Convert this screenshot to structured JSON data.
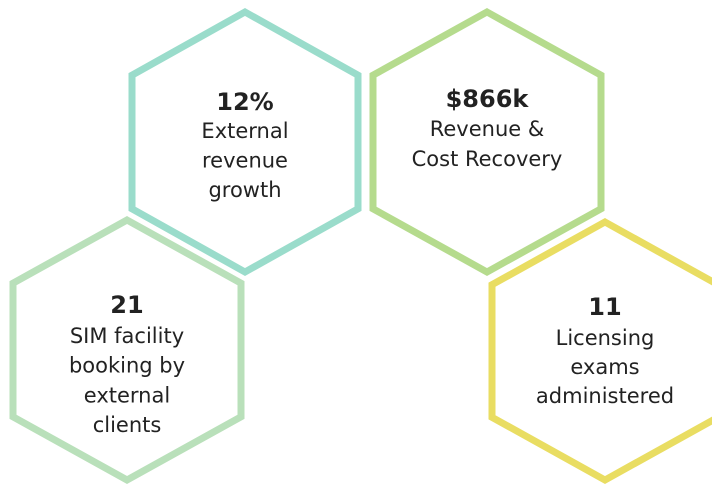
{
  "hexagons": [
    {
      "value": "12%",
      "lines": [
        "External",
        "revenue",
        "growth"
      ],
      "color": "#9adccb"
    },
    {
      "value": "$866k",
      "lines": [
        "Revenue &",
        "Cost Recovery"
      ],
      "color": "#b5db8d"
    },
    {
      "value": "21",
      "lines": [
        "SIM facility",
        "booking by",
        "external",
        "clients"
      ],
      "color": "#b9e0ba"
    },
    {
      "value": "11",
      "lines": [
        "Licensing",
        "exams",
        "administered"
      ],
      "color": "#e9dd62"
    }
  ]
}
